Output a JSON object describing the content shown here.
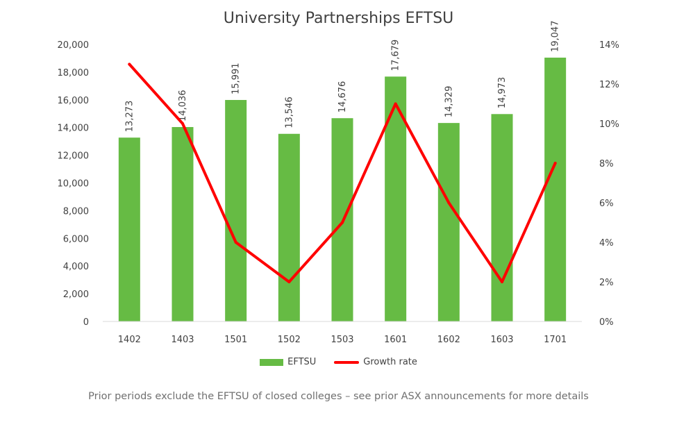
{
  "chart_data": {
    "type": "bar",
    "title": "University Partnerships EFTSU",
    "categories": [
      "1402",
      "1403",
      "1501",
      "1502",
      "1503",
      "1601",
      "1602",
      "1603",
      "1701"
    ],
    "series": [
      {
        "name": "EFTSU",
        "type": "bar",
        "axis": "left",
        "values": [
          13273,
          14036,
          15991,
          13546,
          14676,
          17679,
          14329,
          14973,
          19047
        ],
        "labels": [
          "13,273",
          "14,036",
          "15,991",
          "13,546",
          "14,676",
          "17,679",
          "14,329",
          "14,973",
          "19,047"
        ]
      },
      {
        "name": "Growth rate",
        "type": "line",
        "axis": "right",
        "values": [
          13,
          10,
          4,
          2,
          5,
          11,
          6,
          2,
          8
        ]
      }
    ],
    "left_axis": {
      "ylim": [
        0,
        20000
      ],
      "ticks": [
        "0",
        "2,000",
        "4,000",
        "6,000",
        "8,000",
        "10,000",
        "12,000",
        "14,000",
        "16,000",
        "18,000",
        "20,000"
      ]
    },
    "right_axis": {
      "ylim": [
        0,
        14
      ],
      "ticks": [
        "0%",
        "2%",
        "4%",
        "6%",
        "8%",
        "10%",
        "12%",
        "14%"
      ]
    },
    "grid": false,
    "legend_position": "bottom",
    "colors": {
      "bar": "#66bb44",
      "line": "#ff0000",
      "axis": "#d9d9d9"
    }
  },
  "footnote": "Prior periods exclude the EFTSU of closed colleges – see prior ASX announcements for more details"
}
